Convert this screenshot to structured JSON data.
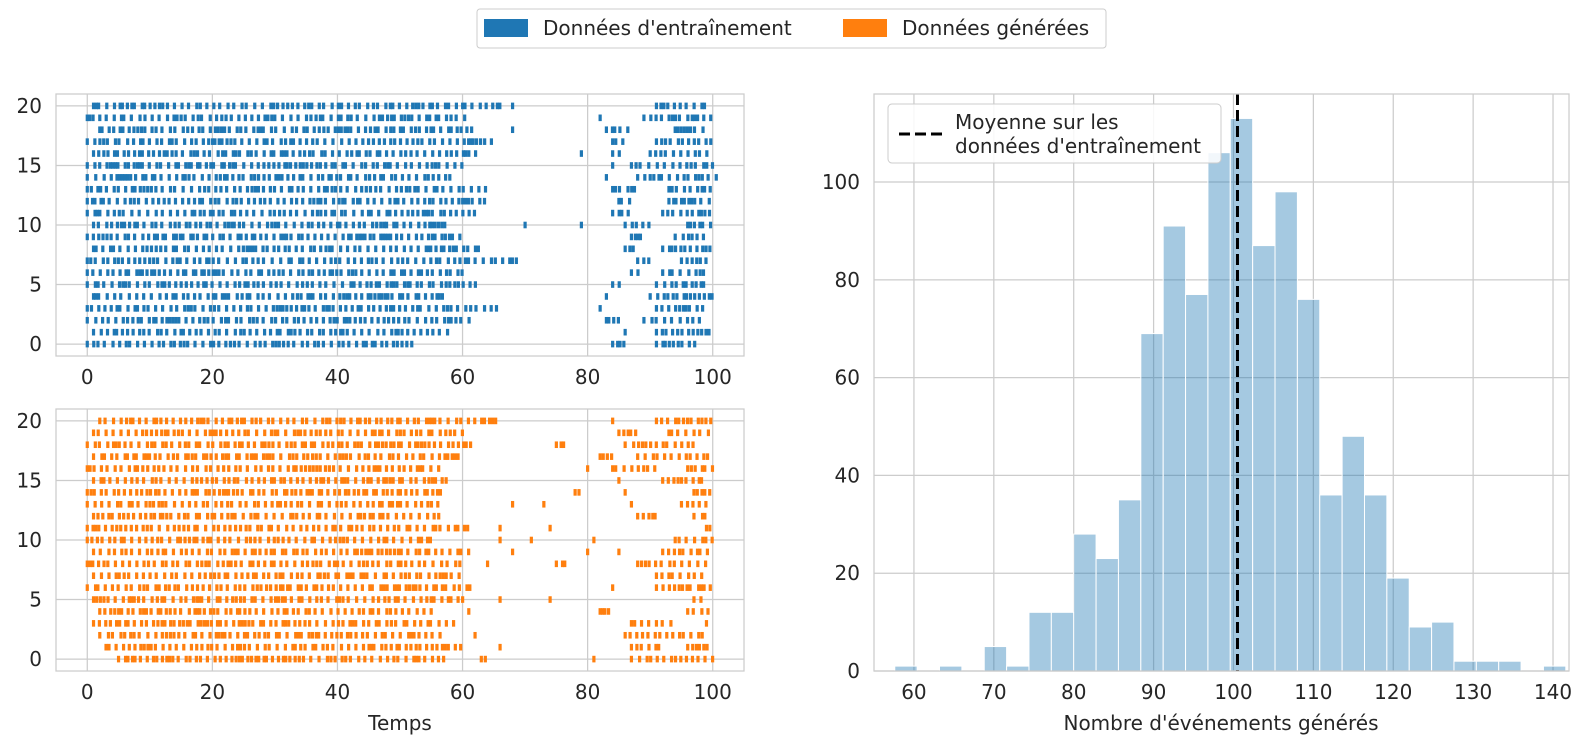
{
  "legend": {
    "placement": "top-center",
    "items": [
      {
        "label": "Données d'entraînement",
        "color": "#1f77b4"
      },
      {
        "label": "Données générées",
        "color": "#ff7f0e"
      }
    ]
  },
  "chart_data": [
    {
      "type": "scatter",
      "marker": "vertical-tick",
      "panel": "top-left",
      "color": "#1f77b4",
      "xlabel": "",
      "ylabel": "",
      "xlim": [
        -5,
        105
      ],
      "ylim": [
        -1,
        21
      ],
      "xticks": [
        0,
        20,
        40,
        60,
        80,
        100
      ],
      "yticks": [
        0,
        5,
        10,
        15,
        20
      ],
      "grid": true,
      "rows": [
        {
          "y": 0,
          "segments": [
            [
              0,
              53
            ],
            [
              84,
              86
            ],
            [
              91,
              98
            ]
          ]
        },
        {
          "y": 1,
          "segments": [
            [
              1,
              58
            ],
            [
              86,
              86
            ],
            [
              91,
              100
            ]
          ]
        },
        {
          "y": 2,
          "segments": [
            [
              0,
              62
            ],
            [
              83,
              85
            ],
            [
              89,
              99
            ]
          ]
        },
        {
          "y": 3,
          "segments": [
            [
              0,
              66
            ],
            [
              82,
              82
            ],
            [
              91,
              99
            ]
          ]
        },
        {
          "y": 4,
          "segments": [
            [
              1,
              57
            ],
            [
              83,
              84
            ],
            [
              90,
              100
            ]
          ]
        },
        {
          "y": 5,
          "segments": [
            [
              0,
              63
            ],
            [
              84,
              86
            ],
            [
              91,
              99
            ]
          ]
        },
        {
          "y": 6,
          "segments": [
            [
              0,
              61
            ],
            [
              87,
              89
            ],
            [
              92,
              99
            ]
          ]
        },
        {
          "y": 7,
          "segments": [
            [
              0,
              69
            ],
            [
              88,
              90
            ],
            [
              95,
              100
            ]
          ]
        },
        {
          "y": 8,
          "segments": [
            [
              1,
              63
            ],
            [
              86,
              88
            ],
            [
              92,
              100
            ]
          ]
        },
        {
          "y": 9,
          "segments": [
            [
              0,
              60
            ],
            [
              87,
              89
            ],
            [
              94,
              99
            ]
          ]
        },
        {
          "y": 10,
          "segments": [
            [
              1,
              58
            ],
            [
              70,
              70
            ],
            [
              79,
              79
            ],
            [
              86,
              90
            ],
            [
              96,
              100
            ]
          ]
        },
        {
          "y": 11,
          "segments": [
            [
              0,
              62
            ],
            [
              84,
              87
            ],
            [
              92,
              100
            ]
          ]
        },
        {
          "y": 12,
          "segments": [
            [
              0,
              64
            ],
            [
              85,
              87
            ],
            [
              93,
              100
            ]
          ]
        },
        {
          "y": 13,
          "segments": [
            [
              0,
              64
            ],
            [
              84,
              88
            ],
            [
              93,
              100
            ]
          ]
        },
        {
          "y": 14,
          "segments": [
            [
              0,
              58
            ],
            [
              83,
              83
            ],
            [
              88,
              101
            ]
          ]
        },
        {
          "y": 15,
          "segments": [
            [
              0,
              60
            ],
            [
              84,
              84
            ],
            [
              87,
              100
            ]
          ]
        },
        {
          "y": 16,
          "segments": [
            [
              1,
              63
            ],
            [
              79,
              79
            ],
            [
              84,
              86
            ],
            [
              90,
              100
            ]
          ]
        },
        {
          "y": 17,
          "segments": [
            [
              0,
              65
            ],
            [
              84,
              86
            ],
            [
              91,
              100
            ]
          ]
        },
        {
          "y": 18,
          "segments": [
            [
              2,
              62
            ],
            [
              68,
              68
            ],
            [
              83,
              87
            ],
            [
              94,
              99
            ]
          ]
        },
        {
          "y": 19,
          "segments": [
            [
              0,
              61
            ],
            [
              82,
              82
            ],
            [
              89,
              100
            ]
          ]
        },
        {
          "y": 20,
          "segments": [
            [
              1,
              66
            ],
            [
              68,
              68
            ],
            [
              91,
              99
            ]
          ]
        }
      ]
    },
    {
      "type": "scatter",
      "marker": "vertical-tick",
      "panel": "bottom-left",
      "color": "#ff7f0e",
      "xlabel": "Temps",
      "ylabel": "",
      "xlim": [
        -5,
        105
      ],
      "ylim": [
        -1,
        21
      ],
      "xticks": [
        0,
        20,
        40,
        60,
        80,
        100
      ],
      "yticks": [
        0,
        5,
        10,
        15,
        20
      ],
      "grid": true,
      "rows": [
        {
          "y": 0,
          "segments": [
            [
              5,
              57
            ],
            [
              63,
              64
            ],
            [
              81,
              81
            ],
            [
              87,
              100
            ]
          ]
        },
        {
          "y": 1,
          "segments": [
            [
              3,
              60
            ],
            [
              66,
              66
            ],
            [
              87,
              92
            ],
            [
              96,
              100
            ]
          ]
        },
        {
          "y": 2,
          "segments": [
            [
              2,
              57
            ],
            [
              62,
              62
            ],
            [
              86,
              99
            ]
          ]
        },
        {
          "y": 3,
          "segments": [
            [
              1,
              59
            ],
            [
              87,
              94
            ],
            [
              99,
              100
            ]
          ]
        },
        {
          "y": 4,
          "segments": [
            [
              2,
              55
            ],
            [
              61,
              61
            ],
            [
              82,
              84
            ],
            [
              96,
              100
            ]
          ]
        },
        {
          "y": 5,
          "segments": [
            [
              1,
              61
            ],
            [
              66,
              66
            ],
            [
              74,
              74
            ],
            [
              97,
              99
            ]
          ]
        },
        {
          "y": 6,
          "segments": [
            [
              0,
              62
            ],
            [
              84,
              84
            ],
            [
              91,
              100
            ]
          ]
        },
        {
          "y": 7,
          "segments": [
            [
              1,
              60
            ],
            [
              91,
              99
            ]
          ]
        },
        {
          "y": 8,
          "segments": [
            [
              0,
              60
            ],
            [
              64,
              64
            ],
            [
              75,
              77
            ],
            [
              88,
              99
            ]
          ]
        },
        {
          "y": 9,
          "segments": [
            [
              1,
              61
            ],
            [
              68,
              68
            ],
            [
              80,
              80
            ],
            [
              85,
              85
            ],
            [
              92,
              100
            ]
          ]
        },
        {
          "y": 10,
          "segments": [
            [
              0,
              55
            ],
            [
              66,
              66
            ],
            [
              71,
              71
            ],
            [
              81,
              81
            ],
            [
              94,
              100
            ]
          ]
        },
        {
          "y": 11,
          "segments": [
            [
              0,
              61
            ],
            [
              66,
              66
            ],
            [
              74,
              74
            ],
            [
              99,
              100
            ]
          ]
        },
        {
          "y": 12,
          "segments": [
            [
              1,
              57
            ],
            [
              88,
              91
            ],
            [
              97,
              99
            ]
          ]
        },
        {
          "y": 13,
          "segments": [
            [
              0,
              57
            ],
            [
              68,
              69
            ],
            [
              73,
              73
            ],
            [
              87,
              87
            ],
            [
              95,
              99
            ]
          ]
        },
        {
          "y": 14,
          "segments": [
            [
              0,
              57
            ],
            [
              78,
              79
            ],
            [
              86,
              87
            ],
            [
              97,
              100
            ]
          ]
        },
        {
          "y": 15,
          "segments": [
            [
              1,
              58
            ],
            [
              85,
              85
            ],
            [
              92,
              99
            ]
          ]
        },
        {
          "y": 16,
          "segments": [
            [
              0,
              57
            ],
            [
              80,
              80
            ],
            [
              84,
              92
            ],
            [
              96,
              100
            ]
          ]
        },
        {
          "y": 17,
          "segments": [
            [
              1,
              60
            ],
            [
              82,
              84
            ],
            [
              88,
              100
            ]
          ]
        },
        {
          "y": 18,
          "segments": [
            [
              0,
              62
            ],
            [
              75,
              77
            ],
            [
              86,
              97
            ]
          ]
        },
        {
          "y": 19,
          "segments": [
            [
              1,
              60
            ],
            [
              85,
              88
            ],
            [
              93,
              100
            ]
          ]
        },
        {
          "y": 20,
          "segments": [
            [
              2,
              66
            ],
            [
              84,
              84
            ],
            [
              91,
              100
            ]
          ]
        }
      ]
    },
    {
      "type": "bar",
      "subtype": "histogram",
      "panel": "right",
      "color": "#1f77b4",
      "alpha": 0.4,
      "xlabel": "Nombre d'événements générés",
      "ylabel": "",
      "xlim": [
        55,
        142
      ],
      "ylim": [
        0,
        118
      ],
      "xticks": [
        60,
        70,
        80,
        90,
        100,
        110,
        120,
        130,
        140
      ],
      "yticks": [
        0,
        20,
        40,
        60,
        80,
        100
      ],
      "grid": true,
      "bin_edges": [
        57.6,
        60.4,
        63.2,
        66.0,
        68.8,
        71.6,
        74.4,
        77.2,
        80.0,
        82.8,
        85.6,
        88.4,
        91.2,
        94.0,
        96.8,
        99.6,
        102.4,
        105.2,
        108.0,
        110.8,
        113.6,
        116.4,
        119.2,
        122.0,
        124.8,
        127.6,
        130.4,
        133.2,
        136.0,
        138.8,
        141.6
      ],
      "counts": [
        1,
        0,
        1,
        0,
        5,
        1,
        12,
        12,
        28,
        23,
        35,
        69,
        91,
        77,
        106,
        113,
        87,
        98,
        76,
        36,
        48,
        36,
        19,
        9,
        10,
        2,
        2,
        2,
        0,
        1
      ],
      "mean_line": {
        "x": 100.5,
        "style": "dashed",
        "color": "#000000",
        "label": "Moyenne sur les données d'entraînement"
      },
      "legend": {
        "placement": "top-left",
        "label_lines": [
          "Moyenne sur les",
          "données d'entraînement"
        ]
      }
    }
  ]
}
